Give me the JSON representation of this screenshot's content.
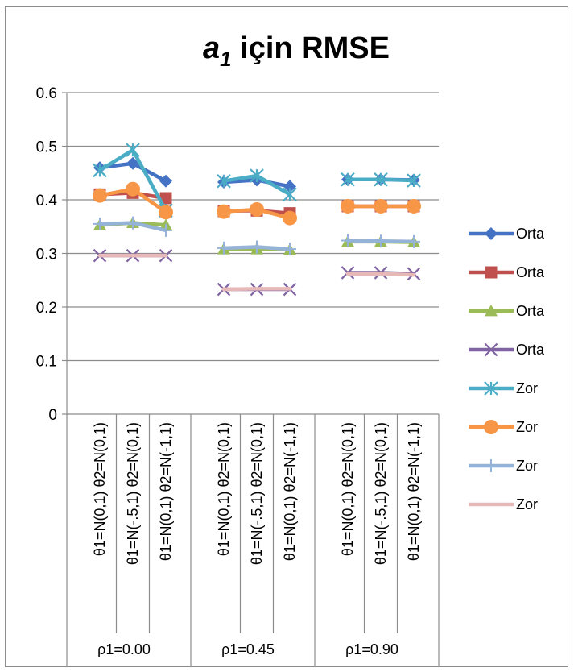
{
  "chart_data": {
    "type": "line",
    "title": {
      "symbol": "a",
      "subscript": "1",
      "rest": " için RMSE"
    },
    "ylim": [
      0,
      0.6
    ],
    "yticks": [
      "0",
      "0.1",
      "0.2",
      "0.3",
      "0.4",
      "0.5",
      "0.6"
    ],
    "grid": true,
    "legend_position": "right",
    "groups": [
      {
        "label": "ρ1=0.00",
        "categories": [
          "θ1=N(0,1) θ2=N(0,1)",
          "θ1=N(-.5,1) θ2=N(0,1)",
          "θ1=N(0,1) θ2=N(-1,1)"
        ]
      },
      {
        "label": "ρ1=0.45",
        "categories": [
          "θ1=N(0,1) θ2=N(0,1)",
          "θ1=N(-.5,1) θ2=N(0,1)",
          "θ1=N(0,1) θ2=N(-1,1)"
        ]
      },
      {
        "label": "ρ1=0.90",
        "categories": [
          "θ1=N(0,1) θ2=N(0,1)",
          "θ1=N(-.5,1) θ2=N(0,1)",
          "θ1=N(0,1) θ2=N(-1,1)"
        ]
      }
    ],
    "series": [
      {
        "name": "Orta",
        "color": "#4472C4",
        "marker": "diamond",
        "values": [
          [
            0.46,
            0.468,
            0.435
          ],
          [
            0.433,
            0.437,
            0.425
          ],
          [
            0.438,
            0.438,
            0.437
          ]
        ]
      },
      {
        "name": "Orta",
        "color": "#C0504D",
        "marker": "square",
        "values": [
          [
            0.41,
            0.413,
            0.403
          ],
          [
            0.379,
            0.38,
            0.375
          ],
          [
            0.388,
            0.388,
            0.388
          ]
        ]
      },
      {
        "name": "Orta",
        "color": "#9BBB59",
        "marker": "triangle",
        "values": [
          [
            0.353,
            0.357,
            0.353
          ],
          [
            0.308,
            0.308,
            0.307
          ],
          [
            0.322,
            0.322,
            0.321
          ]
        ]
      },
      {
        "name": "Orta",
        "color": "#8064A2",
        "marker": "x",
        "values": [
          [
            0.296,
            0.296,
            0.296
          ],
          [
            0.233,
            0.233,
            0.233
          ],
          [
            0.264,
            0.264,
            0.262
          ]
        ]
      },
      {
        "name": "Zor",
        "color": "#4BACC6",
        "marker": "star",
        "values": [
          [
            0.455,
            0.493,
            0.38
          ],
          [
            0.435,
            0.445,
            0.41
          ],
          [
            0.438,
            0.438,
            0.436
          ]
        ]
      },
      {
        "name": "Zor",
        "color": "#F79646",
        "marker": "circle",
        "values": [
          [
            0.408,
            0.42,
            0.377
          ],
          [
            0.378,
            0.382,
            0.366
          ],
          [
            0.388,
            0.388,
            0.388
          ]
        ]
      },
      {
        "name": "Zor",
        "color": "#95B3D7",
        "marker": "plus",
        "values": [
          [
            0.355,
            0.357,
            0.343
          ],
          [
            0.31,
            0.312,
            0.308
          ],
          [
            0.324,
            0.323,
            0.322
          ]
        ]
      },
      {
        "name": "Zor",
        "color": "#E6B9B8",
        "marker": "none",
        "values": [
          [
            0.296,
            0.296,
            0.296
          ],
          [
            0.233,
            0.234,
            0.234
          ],
          [
            0.262,
            0.262,
            0.26
          ]
        ]
      }
    ]
  }
}
